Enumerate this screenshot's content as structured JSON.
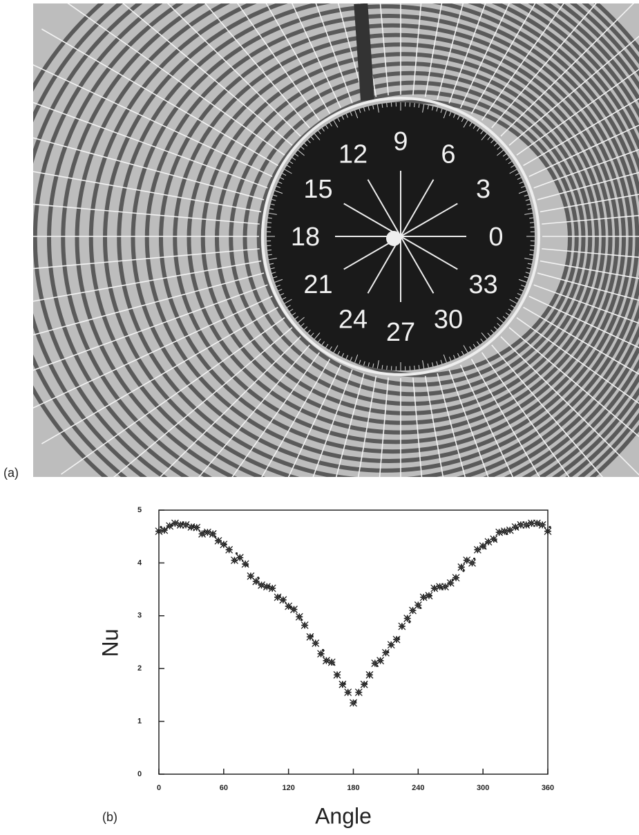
{
  "panel_labels": [
    "(a)",
    "(b)"
  ],
  "photo": {
    "dial_labels": [
      "0",
      "3",
      "6",
      "9",
      "12",
      "15",
      "18",
      "21",
      "24",
      "27",
      "30",
      "33"
    ]
  },
  "chart_data": {
    "type": "scatter",
    "x_label": "Angle",
    "y_label": "Nu",
    "xlim": [
      0,
      360
    ],
    "xticks": [
      0,
      60,
      120,
      180,
      240,
      300,
      360
    ],
    "ylim": [
      0,
      5
    ],
    "yticks": [
      0,
      1,
      2,
      3,
      4,
      5
    ],
    "series": [
      {
        "marker": "star",
        "color": "#222222",
        "x": [
          0,
          5,
          10,
          15,
          20,
          25,
          30,
          35,
          40,
          45,
          50,
          55,
          60,
          65,
          70,
          75,
          80,
          85,
          90,
          95,
          100,
          105,
          110,
          115,
          120,
          125,
          130,
          135,
          140,
          145,
          150,
          155,
          160,
          165,
          170,
          175,
          180,
          185,
          190,
          195,
          200,
          205,
          210,
          215,
          220,
          225,
          230,
          235,
          240,
          245,
          250,
          255,
          260,
          265,
          270,
          275,
          280,
          285,
          290,
          295,
          300,
          305,
          310,
          315,
          320,
          325,
          330,
          335,
          340,
          345,
          350,
          355,
          360
        ],
        "values": [
          4.6,
          4.62,
          4.7,
          4.75,
          4.72,
          4.72,
          4.68,
          4.67,
          4.55,
          4.58,
          4.55,
          4.42,
          4.35,
          4.25,
          4.05,
          4.1,
          3.98,
          3.75,
          3.65,
          3.58,
          3.55,
          3.52,
          3.35,
          3.3,
          3.18,
          3.12,
          2.98,
          2.82,
          2.6,
          2.48,
          2.28,
          2.15,
          2.12,
          1.88,
          1.7,
          1.55,
          1.35,
          1.55,
          1.7,
          1.88,
          2.1,
          2.15,
          2.3,
          2.45,
          2.55,
          2.8,
          2.95,
          3.1,
          3.2,
          3.35,
          3.38,
          3.52,
          3.55,
          3.55,
          3.62,
          3.72,
          3.92,
          4.05,
          4.0,
          4.25,
          4.32,
          4.4,
          4.45,
          4.58,
          4.6,
          4.62,
          4.68,
          4.72,
          4.72,
          4.75,
          4.75,
          4.72,
          4.6
        ]
      },
      {
        "marker": "dot",
        "color": "#222222",
        "x": [
          0,
          10,
          20,
          30,
          40,
          50,
          60,
          70,
          80,
          90,
          100,
          110,
          120,
          130,
          140,
          150,
          160,
          170,
          180,
          190,
          200,
          210,
          220,
          230,
          240,
          250,
          260,
          270,
          280,
          290,
          300,
          310,
          320,
          330,
          340,
          350,
          360
        ],
        "values": [
          4.68,
          4.72,
          4.75,
          4.7,
          4.6,
          4.5,
          4.35,
          4.18,
          3.95,
          3.72,
          3.55,
          3.38,
          3.15,
          2.92,
          2.62,
          2.35,
          2.08,
          1.72,
          1.38,
          1.72,
          2.05,
          2.32,
          2.58,
          2.88,
          3.15,
          3.38,
          3.52,
          3.68,
          3.85,
          4.08,
          4.28,
          4.42,
          4.55,
          4.65,
          4.7,
          4.72,
          4.68
        ]
      }
    ]
  }
}
